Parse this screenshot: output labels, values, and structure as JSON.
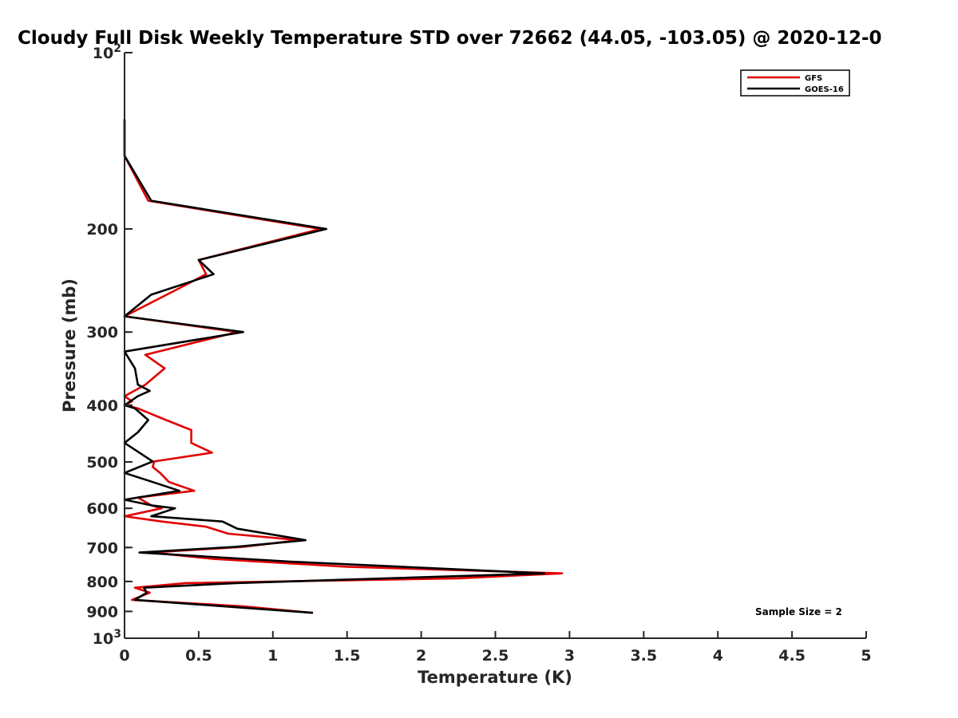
{
  "chart_data": {
    "type": "line",
    "title": "Cloudy Full Disk Weekly Temperature STD over 72662 (44.05, -103.05) @ 2020-12-0",
    "xlabel": "Temperature (K)",
    "ylabel": "Pressure (mb)",
    "xlim": [
      0,
      5
    ],
    "ylim": [
      100,
      1000
    ],
    "y_scale": "log",
    "y_reversed": true,
    "x_ticks": [
      "0",
      "0.5",
      "1",
      "1.5",
      "2",
      "2.5",
      "3",
      "3.5",
      "4",
      "4.5",
      "5"
    ],
    "y_ticks": [
      {
        "value": 100,
        "base": "10",
        "exp": "2"
      },
      {
        "value": 200,
        "label": "200"
      },
      {
        "value": 300,
        "label": "300"
      },
      {
        "value": 400,
        "label": "400"
      },
      {
        "value": 500,
        "label": "500"
      },
      {
        "value": 600,
        "label": "600"
      },
      {
        "value": 700,
        "label": "700"
      },
      {
        "value": 800,
        "label": "800"
      },
      {
        "value": 900,
        "label": "900"
      },
      {
        "value": 1000,
        "base": "10",
        "exp": "3"
      }
    ],
    "legend_position": "top-right",
    "annotation": "Sample Size = 2",
    "series": [
      {
        "name": "GFS",
        "color": "#e00000",
        "points": [
          [
            0.0,
            130
          ],
          [
            0.0,
            150
          ],
          [
            0.16,
            179
          ],
          [
            1.32,
            200
          ],
          [
            0.5,
            226
          ],
          [
            0.55,
            239
          ],
          [
            0.35,
            254
          ],
          [
            0.0,
            282
          ],
          [
            0.76,
            300
          ],
          [
            0.14,
            328
          ],
          [
            0.27,
            346
          ],
          [
            0.14,
            369
          ],
          [
            0.0,
            386
          ],
          [
            0.05,
            394
          ],
          [
            0.0,
            400
          ],
          [
            0.09,
            405
          ],
          [
            0.28,
            424
          ],
          [
            0.45,
            441
          ],
          [
            0.45,
            464
          ],
          [
            0.59,
            482
          ],
          [
            0.2,
            499
          ],
          [
            0.19,
            510
          ],
          [
            0.24,
            522
          ],
          [
            0.3,
            541
          ],
          [
            0.47,
            560
          ],
          [
            0.09,
            575
          ],
          [
            0.18,
            593
          ],
          [
            0.25,
            600
          ],
          [
            0.0,
            619
          ],
          [
            0.25,
            632
          ],
          [
            0.55,
            645
          ],
          [
            0.7,
            663
          ],
          [
            1.18,
            680
          ],
          [
            0.8,
            698
          ],
          [
            0.18,
            714
          ],
          [
            0.6,
            732
          ],
          [
            1.5,
            755
          ],
          [
            2.95,
            775
          ],
          [
            2.25,
            790
          ],
          [
            0.41,
            805
          ],
          [
            0.07,
            820
          ],
          [
            0.17,
            836
          ],
          [
            0.05,
            860
          ],
          [
            0.8,
            882
          ],
          [
            1.27,
            905
          ]
        ]
      },
      {
        "name": "GOES-16",
        "color": "#000000",
        "points": [
          [
            0.0,
            130
          ],
          [
            0.0,
            150
          ],
          [
            0.18,
            179
          ],
          [
            1.36,
            200
          ],
          [
            0.5,
            226
          ],
          [
            0.6,
            239
          ],
          [
            0.18,
            259
          ],
          [
            0.0,
            282
          ],
          [
            0.8,
            300
          ],
          [
            0.0,
            324
          ],
          [
            0.07,
            346
          ],
          [
            0.09,
            369
          ],
          [
            0.17,
            378
          ],
          [
            0.09,
            386
          ],
          [
            0.0,
            400
          ],
          [
            0.07,
            405
          ],
          [
            0.16,
            424
          ],
          [
            0.09,
            445
          ],
          [
            0.0,
            464
          ],
          [
            0.1,
            482
          ],
          [
            0.19,
            499
          ],
          [
            0.0,
            522
          ],
          [
            0.19,
            541
          ],
          [
            0.37,
            560
          ],
          [
            0.0,
            580
          ],
          [
            0.18,
            593
          ],
          [
            0.34,
            600
          ],
          [
            0.18,
            619
          ],
          [
            0.66,
            632
          ],
          [
            0.76,
            650
          ],
          [
            1.22,
            680
          ],
          [
            0.75,
            698
          ],
          [
            0.1,
            714
          ],
          [
            1.12,
            740
          ],
          [
            2.83,
            775
          ],
          [
            0.75,
            805
          ],
          [
            0.13,
            820
          ],
          [
            0.15,
            836
          ],
          [
            0.07,
            860
          ],
          [
            1.27,
            905
          ]
        ]
      }
    ]
  }
}
